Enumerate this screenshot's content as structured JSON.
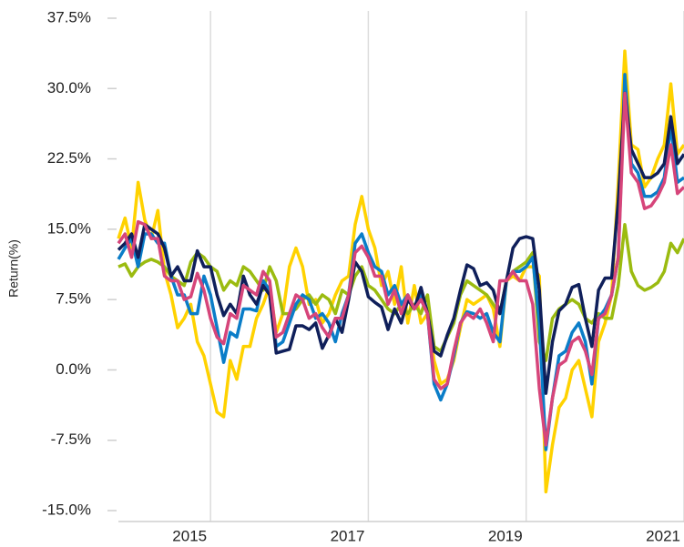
{
  "chart_data": {
    "type": "line",
    "y_label": "Return(%)",
    "xlim": [
      2013.833,
      2021.0
    ],
    "xticks": [
      2015,
      2017,
      2019,
      2021
    ],
    "ylim": [
      -15,
      37.5
    ],
    "yticks": [
      {
        "value": -15,
        "label": "-15.0%"
      },
      {
        "value": -7.5,
        "label": "-7.5%"
      },
      {
        "value": 0,
        "label": "0.0%"
      },
      {
        "value": 7.5,
        "label": "7.5%"
      },
      {
        "value": 15,
        "label": "15.0%"
      },
      {
        "value": 22.5,
        "label": "22.5%"
      },
      {
        "value": 30,
        "label": "30.0%"
      },
      {
        "value": 37.5,
        "label": "37.5%"
      }
    ],
    "grid": "x",
    "x": [
      2013.833,
      2013.917,
      2014,
      2014.083,
      2014.167,
      2014.25,
      2014.333,
      2014.417,
      2014.5,
      2014.583,
      2014.667,
      2014.75,
      2014.833,
      2014.917,
      2015,
      2015.083,
      2015.167,
      2015.25,
      2015.333,
      2015.417,
      2015.5,
      2015.583,
      2015.667,
      2015.75,
      2015.833,
      2015.917,
      2016,
      2016.083,
      2016.167,
      2016.25,
      2016.333,
      2016.417,
      2016.5,
      2016.583,
      2016.667,
      2016.75,
      2016.833,
      2016.917,
      2017,
      2017.083,
      2017.167,
      2017.25,
      2017.333,
      2017.417,
      2017.5,
      2017.583,
      2017.667,
      2017.75,
      2017.833,
      2017.917,
      2018,
      2018.083,
      2018.167,
      2018.25,
      2018.333,
      2018.417,
      2018.5,
      2018.583,
      2018.667,
      2018.75,
      2018.833,
      2018.917,
      2019,
      2019.083,
      2019.167,
      2019.25,
      2019.333,
      2019.417,
      2019.5,
      2019.583,
      2019.667,
      2019.75,
      2019.833,
      2019.917,
      2020,
      2020.083,
      2020.167,
      2020.25,
      2020.333,
      2020.417,
      2020.5,
      2020.583,
      2020.667,
      2020.75,
      2020.833,
      2020.917,
      2021
    ],
    "series": [
      {
        "color": "#ffd200",
        "values": [
          14,
          16.2,
          13,
          20,
          16,
          14,
          17,
          10.5,
          8,
          4.5,
          5.5,
          7,
          3,
          1.5,
          -1.5,
          -4.5,
          -5,
          1,
          -1,
          2.5,
          2.5,
          5.5,
          7,
          9,
          4,
          6,
          11,
          13,
          11,
          7,
          7.5,
          5,
          6,
          8,
          9.5,
          10,
          15.5,
          18.5,
          15,
          13,
          9,
          10.5,
          7,
          11,
          5,
          9,
          5,
          6,
          1,
          -1.5,
          -1,
          1,
          4.5,
          7.5,
          7,
          7.5,
          8,
          6.5,
          2.5,
          9.5,
          10,
          9.5,
          11,
          11,
          10,
          -13,
          -8,
          -4,
          -3,
          0,
          1,
          -2,
          -5,
          3,
          5,
          8,
          20,
          34,
          24,
          23.5,
          19.5,
          20.5,
          22.5,
          24,
          30.5,
          23,
          24
        ]
      },
      {
        "color": "#9bbb10",
        "values": [
          11,
          11.3,
          10,
          11,
          11.5,
          11.8,
          11.5,
          11,
          10,
          9.5,
          9,
          11.5,
          12.5,
          12,
          11,
          10.5,
          8.5,
          9.5,
          9,
          11,
          10.5,
          9.5,
          8.5,
          11,
          9.5,
          6,
          6,
          6.5,
          7.5,
          8,
          7,
          8,
          7.5,
          6,
          8.5,
          8,
          10,
          11,
          9,
          8.5,
          7.5,
          6.5,
          6,
          7,
          6,
          7,
          6,
          8,
          2.5,
          2,
          3.5,
          5,
          8,
          9.5,
          9,
          8.5,
          8,
          7,
          6,
          9.5,
          10.5,
          11,
          11.5,
          12.5,
          3,
          1,
          5.5,
          6.5,
          7,
          7.5,
          7,
          5.5,
          5,
          6,
          5.5,
          5.5,
          9,
          15.5,
          10.5,
          9,
          8.5,
          8.8,
          9.3,
          10.5,
          13.5,
          12.5,
          14
        ]
      },
      {
        "color": "#0a7dc8",
        "values": [
          11.8,
          13,
          14,
          11,
          14.5,
          14.5,
          13.5,
          13.5,
          10,
          8,
          8,
          6,
          6,
          10,
          8,
          4.5,
          0.8,
          4,
          3.5,
          6.5,
          6.5,
          6.3,
          9.5,
          8.5,
          2.5,
          3,
          5,
          7,
          8,
          7.5,
          5.5,
          6,
          5,
          3,
          6,
          8,
          13.5,
          14.5,
          12.5,
          11,
          10.5,
          8,
          9,
          7,
          8,
          6.5,
          8,
          6,
          -1.5,
          -3.2,
          -1.5,
          1.5,
          5,
          6.2,
          6,
          5.5,
          6,
          4,
          3,
          9.5,
          10.5,
          10.5,
          11,
          12,
          5,
          -8.5,
          -3,
          1.5,
          2,
          4,
          5,
          3,
          -1.5,
          5.5,
          6.5,
          8,
          12,
          31.5,
          22,
          21,
          18.5,
          18.5,
          19,
          20.5,
          26,
          20,
          20.5
        ]
      },
      {
        "color": "#0f1f5a",
        "values": [
          12.8,
          13.5,
          14.5,
          12,
          15.5,
          15,
          14.5,
          13,
          10,
          11,
          9.5,
          9.5,
          12.7,
          11,
          11,
          8,
          5.8,
          7,
          6,
          10,
          8,
          7,
          9,
          8,
          1.8,
          2,
          2.2,
          4.7,
          4.7,
          4.3,
          5,
          2.3,
          3.7,
          5.5,
          4,
          7.5,
          11.5,
          10.5,
          7.8,
          7.2,
          6.7,
          4.3,
          6.5,
          5,
          7.5,
          6.5,
          8.8,
          6,
          2,
          1.5,
          3.7,
          5.5,
          8.5,
          11.2,
          10.8,
          9,
          9.3,
          8.5,
          6,
          9.5,
          13,
          14,
          14.2,
          14,
          8.5,
          -2.5,
          3,
          6.3,
          7,
          8.8,
          9.1,
          5.5,
          2.5,
          8.5,
          9.8,
          9.8,
          18,
          29.5,
          23.5,
          22,
          20.5,
          20.5,
          21,
          22,
          27,
          22,
          23
        ]
      },
      {
        "color": "#d6457a",
        "values": [
          13.5,
          14.5,
          12,
          15.8,
          15.5,
          14,
          14,
          10,
          9.5,
          9.5,
          7.5,
          7.8,
          10.3,
          8.5,
          5.5,
          3.5,
          2.8,
          6,
          5.5,
          9,
          8.5,
          8,
          10.5,
          9.5,
          3.5,
          4,
          6,
          8,
          7.5,
          5.5,
          6,
          4.5,
          3.5,
          5.5,
          5.5,
          8,
          12.5,
          13.2,
          12,
          10,
          10,
          7,
          8.5,
          6,
          8,
          6.5,
          7.5,
          6,
          -1,
          -2,
          -1.5,
          2,
          5,
          6,
          5.5,
          6.5,
          5,
          3,
          9.5,
          9.5,
          10.5,
          9.5,
          9.5,
          7,
          -2,
          -8,
          -3,
          0.5,
          1,
          3,
          3.5,
          2,
          -0.5,
          5.5,
          6,
          8,
          12,
          29.5,
          21,
          20,
          17.2,
          17.5,
          18.5,
          20,
          24,
          18.8,
          19.5
        ]
      }
    ]
  }
}
